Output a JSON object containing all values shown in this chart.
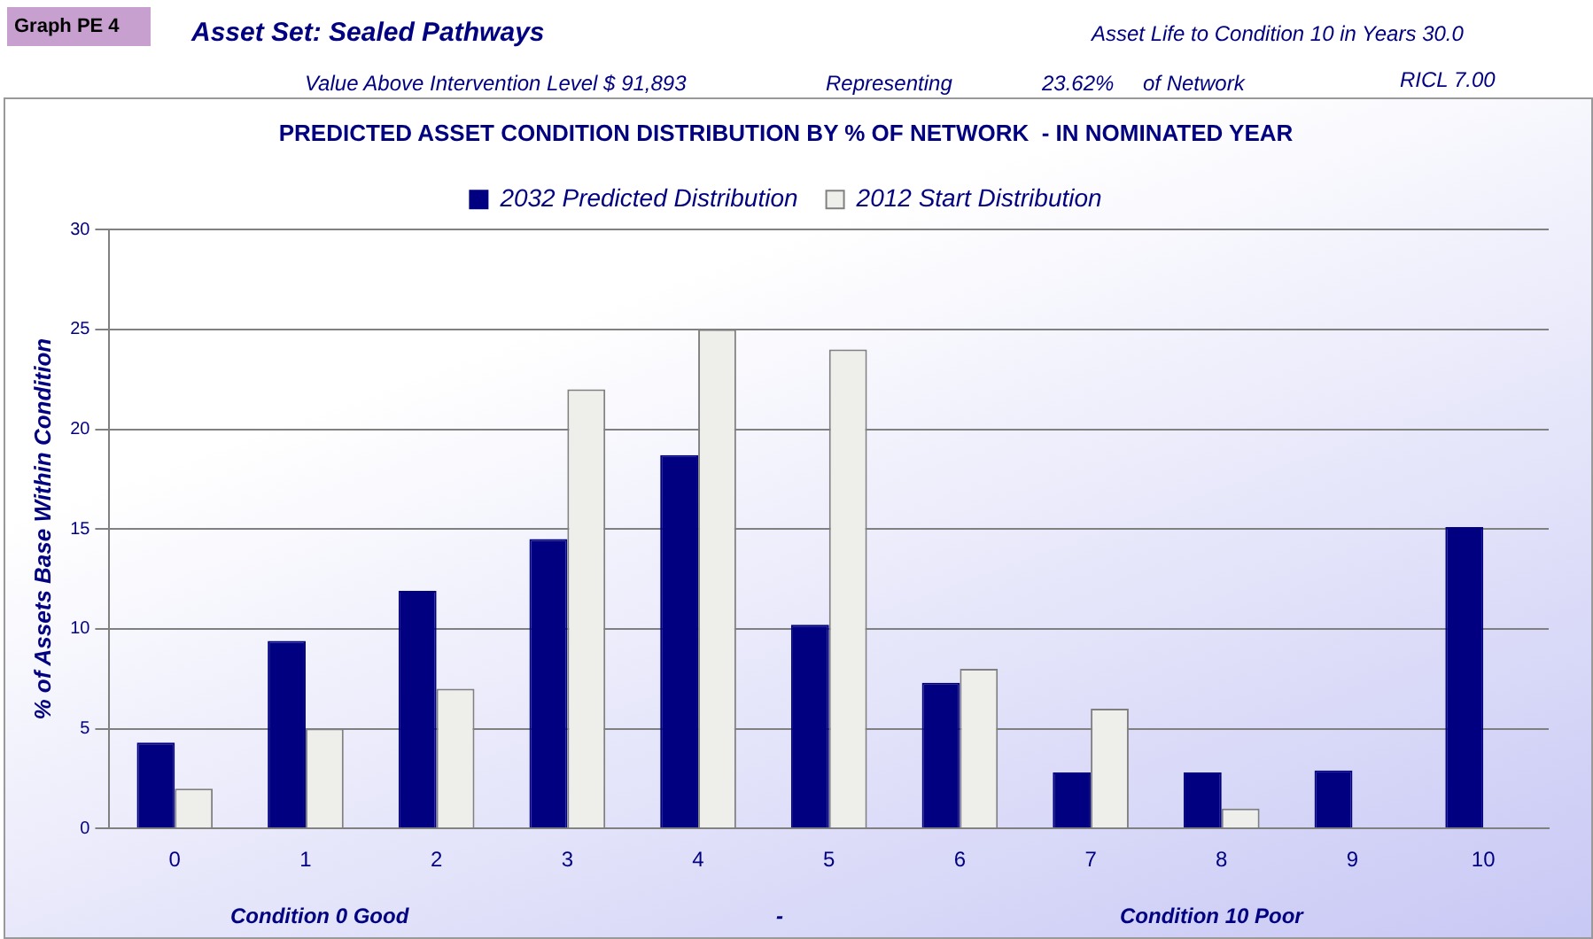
{
  "chart_data": {
    "type": "bar",
    "title": "PREDICTED ASSET CONDITION DISTRIBUTION BY % OF NETWORK  - IN NOMINATED YEAR",
    "ylabel": "% of Assets Base Within Condition",
    "categories": [
      "0",
      "1",
      "2",
      "3",
      "4",
      "5",
      "6",
      "7",
      "8",
      "9",
      "10"
    ],
    "series": [
      {
        "name": "2032 Predicted Distribution",
        "color": "#000080",
        "values": [
          4.3,
          9.4,
          11.9,
          14.5,
          18.7,
          10.2,
          7.3,
          2.8,
          2.8,
          2.9,
          15.1
        ]
      },
      {
        "name": "2012 Start Distribution",
        "color": "#eeeeea",
        "values": [
          2,
          5,
          7,
          22,
          25,
          24,
          8,
          6,
          1,
          0,
          0
        ]
      }
    ],
    "ylim": [
      0,
      30
    ],
    "yticks": [
      0,
      5,
      10,
      15,
      20,
      25,
      30
    ],
    "grid": "y",
    "legend": "top",
    "annotations": [
      "Graph PE 4",
      "Asset Set:  Sealed Pathways",
      "Asset Life to Condition 10 in Years  30.0",
      "Value Above Intervention Level $  91,893",
      "Representing",
      "23.62%",
      "of Network",
      "RICL  7.00",
      "Condition 0 Good",
      "-",
      "Condition 10 Poor"
    ]
  }
}
